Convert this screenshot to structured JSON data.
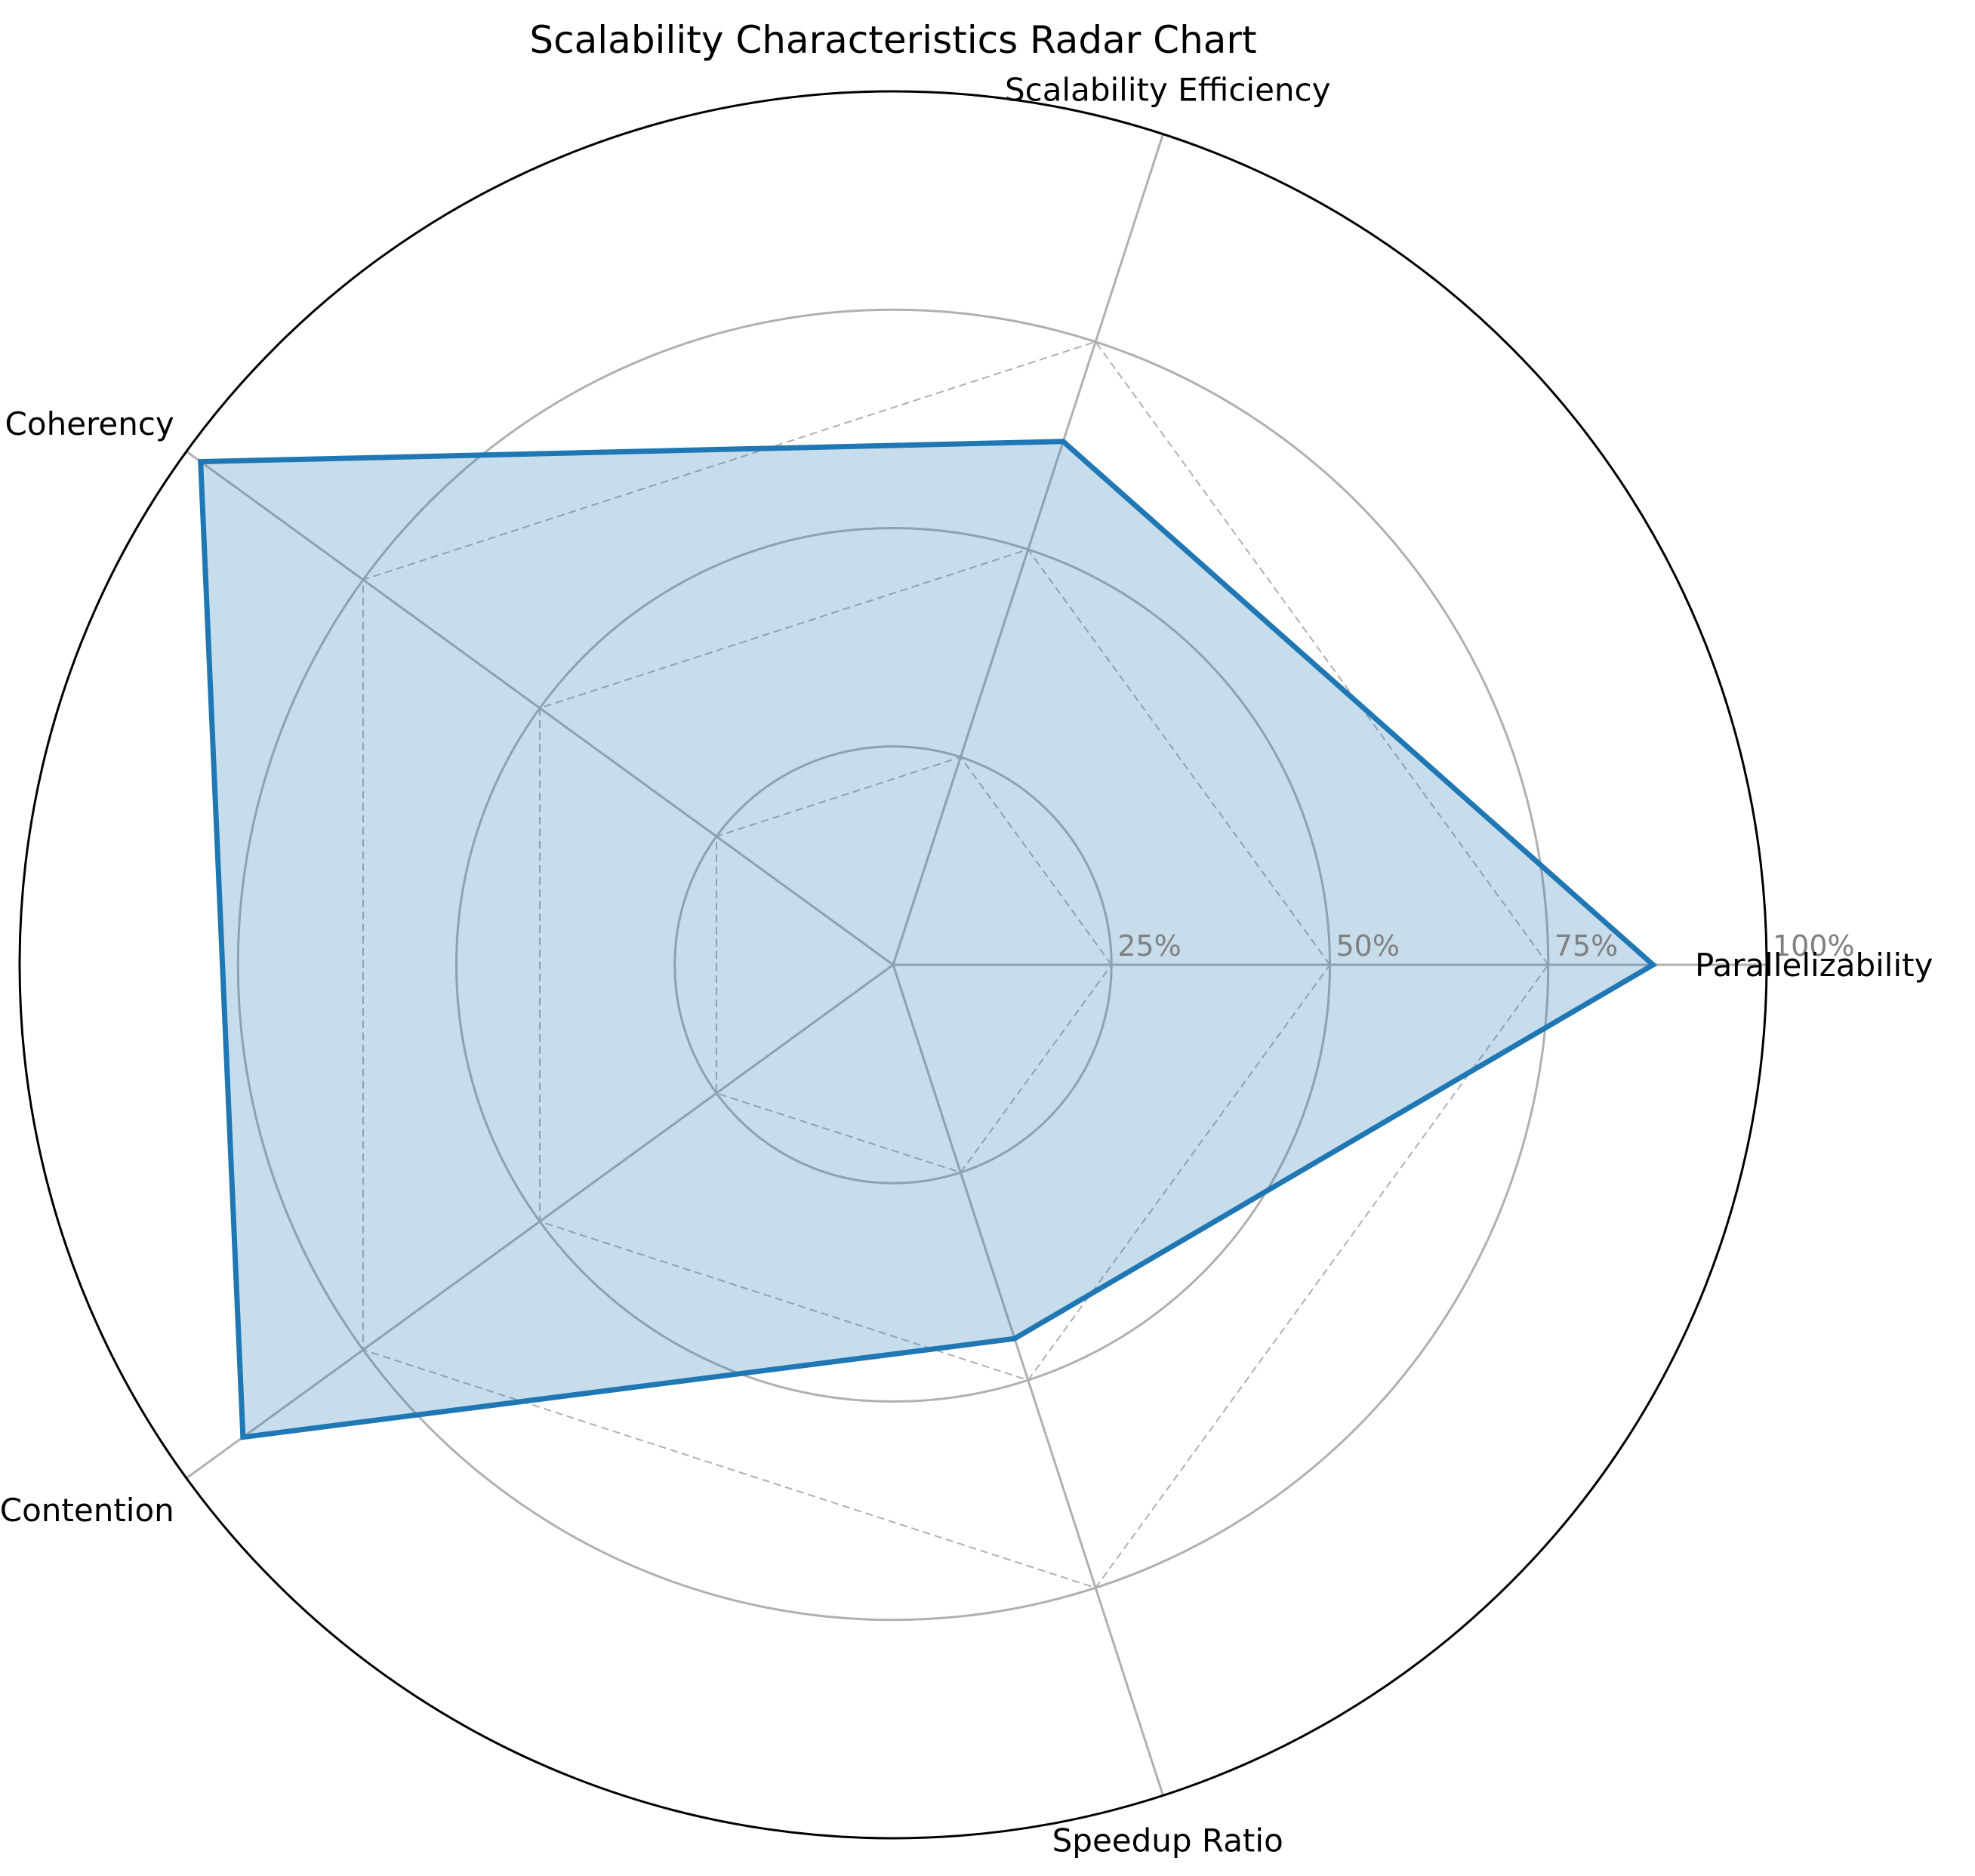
{
  "chart_data": {
    "type": "radar",
    "title": "Scalability Characteristics Radar Chart",
    "categories": [
      "Parallelizability",
      "Scalability Efficiency",
      "Coherency",
      "Contention",
      "Speedup Ratio"
    ],
    "series": [
      {
        "values": [
          0.87,
          0.63,
          0.98,
          0.92,
          0.45
        ]
      }
    ],
    "rlim": [
      0,
      1
    ],
    "radial_ticks": [
      0.25,
      0.5,
      0.75,
      1.0
    ],
    "radial_tick_labels": [
      "25%",
      "50%",
      "75%",
      "100%"
    ],
    "inner_pentagon_levels": [
      0.25,
      0.5,
      0.75
    ],
    "grid": true,
    "colors": {
      "line": "#1f77b4",
      "fill": "#1f77b4",
      "grid": "#b0b0b0",
      "tick_label": "#808080",
      "outer_ring": "#000000"
    }
  }
}
